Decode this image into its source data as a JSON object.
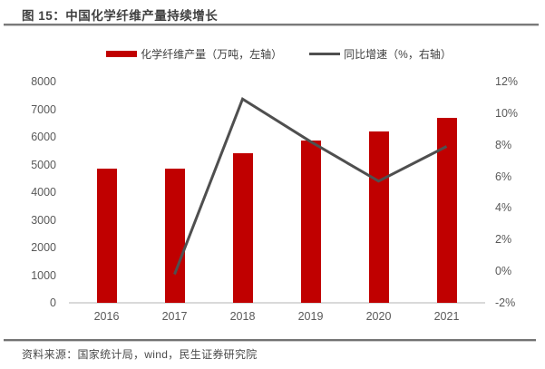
{
  "title": "图 15：中国化学纤维产量持续增长",
  "source": "资料来源：国家统计局，wind，民生证券研究院",
  "colors": {
    "bar": "#c00000",
    "line": "#4f4f4f",
    "rule": "#737373",
    "axis_line": "#d9d9d9",
    "axis_text": "#595959",
    "title_text": "#3f3f3f"
  },
  "legend": {
    "items": [
      {
        "label": "化学纤维产量（万吨，左轴）",
        "swatch": "bar"
      },
      {
        "label": "同比增速（%，右轴）",
        "swatch": "line"
      }
    ]
  },
  "chart_data": {
    "type": "bar+line combo",
    "categories": [
      "2016",
      "2017",
      "2018",
      "2019",
      "2020",
      "2021"
    ],
    "series": [
      {
        "name": "化学纤维产量（万吨，左轴）",
        "type": "bar",
        "axis": "left",
        "color": "#c00000",
        "values": [
          4860,
          4860,
          5410,
          5870,
          6190,
          6690
        ]
      },
      {
        "name": "同比增速（%，右轴）",
        "type": "line",
        "axis": "right",
        "color": "#4f4f4f",
        "values": [
          null,
          -0.2,
          10.9,
          8.2,
          5.7,
          7.9
        ]
      }
    ],
    "left_axis": {
      "min": 0,
      "max": 8000,
      "step": 1000,
      "ticks": [
        "0",
        "1000",
        "2000",
        "3000",
        "4000",
        "5000",
        "6000",
        "7000",
        "8000"
      ]
    },
    "right_axis": {
      "min": -2,
      "max": 12,
      "step": 2,
      "ticks": [
        "-2%",
        "0%",
        "2%",
        "4%",
        "6%",
        "8%",
        "10%",
        "12%"
      ]
    },
    "grid": false,
    "legend_position": "top"
  }
}
